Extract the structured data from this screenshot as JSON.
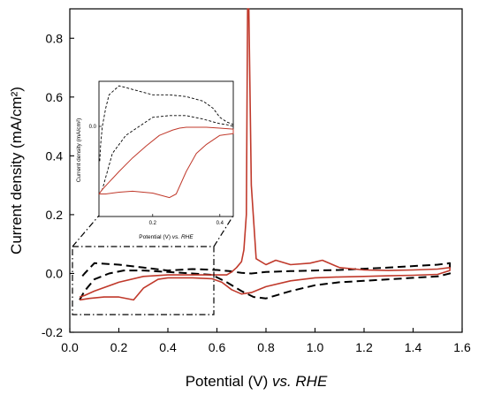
{
  "chart_data": {
    "type": "line",
    "xlabel_main": "Potential (V) ",
    "xlabel_em": "vs. RHE",
    "ylabel": "Current density (mA/cm²)",
    "xlim": [
      0.0,
      1.6
    ],
    "ylim": [
      -0.2,
      0.9
    ],
    "xticks": [
      "0.0",
      "0.2",
      "0.4",
      "0.6",
      "0.8",
      "1.0",
      "1.2",
      "1.4",
      "1.6"
    ],
    "yticks": [
      "-0.2",
      "0.0",
      "0.2",
      "0.4",
      "0.6",
      "0.8"
    ],
    "grid": false,
    "series": [
      {
        "style": "dashed",
        "color": "#000000",
        "x": [
          0.04,
          0.06,
          0.1,
          0.16,
          0.22,
          0.3,
          0.4,
          0.5,
          0.58,
          0.64,
          0.7,
          0.75,
          0.8,
          0.9,
          1.0,
          1.1,
          1.2,
          1.3,
          1.4,
          1.5,
          1.55,
          1.55,
          1.5,
          1.4,
          1.3,
          1.2,
          1.1,
          1.0,
          0.9,
          0.8,
          0.74,
          0.7,
          0.65,
          0.6,
          0.5,
          0.4,
          0.3,
          0.2,
          0.1,
          0.06,
          0.04
        ],
        "y": [
          -0.09,
          -0.06,
          -0.02,
          0.0,
          0.01,
          0.01,
          0.005,
          0.0,
          -0.005,
          -0.03,
          -0.06,
          -0.08,
          -0.085,
          -0.06,
          -0.04,
          -0.03,
          -0.025,
          -0.02,
          -0.015,
          -0.01,
          0.0,
          0.035,
          0.03,
          0.025,
          0.02,
          0.016,
          0.012,
          0.01,
          0.008,
          0.005,
          0.0,
          0.002,
          0.008,
          0.012,
          0.015,
          0.01,
          0.02,
          0.03,
          0.035,
          0.0,
          -0.02
        ]
      },
      {
        "style": "solid",
        "color": "#c0392b",
        "x": [
          0.04,
          0.08,
          0.14,
          0.2,
          0.26,
          0.3,
          0.36,
          0.4,
          0.5,
          0.58,
          0.62,
          0.66,
          0.7,
          0.74,
          0.8,
          0.9,
          1.0,
          1.1,
          1.2,
          1.3,
          1.4,
          1.5,
          1.55,
          1.55,
          1.5,
          1.4,
          1.3,
          1.2,
          1.1,
          1.03,
          0.98,
          0.9,
          0.84,
          0.8,
          0.76,
          0.74,
          0.73,
          0.725,
          0.72,
          0.71,
          0.7,
          0.68,
          0.66,
          0.64,
          0.6,
          0.5,
          0.4,
          0.3,
          0.2,
          0.1,
          0.06,
          0.04
        ],
        "y": [
          -0.09,
          -0.085,
          -0.08,
          -0.08,
          -0.09,
          -0.05,
          -0.02,
          -0.015,
          -0.015,
          -0.018,
          -0.03,
          -0.055,
          -0.07,
          -0.065,
          -0.045,
          -0.025,
          -0.015,
          -0.012,
          -0.01,
          -0.008,
          -0.006,
          -0.003,
          0.01,
          0.02,
          0.015,
          0.012,
          0.01,
          0.012,
          0.02,
          0.045,
          0.035,
          0.03,
          0.045,
          0.03,
          0.05,
          0.3,
          0.9,
          0.9,
          0.2,
          0.08,
          0.04,
          0.02,
          0.005,
          -0.005,
          -0.005,
          -0.005,
          -0.005,
          -0.01,
          -0.03,
          -0.06,
          -0.075,
          -0.08
        ]
      }
    ],
    "inset": {
      "xlabel_main": "Potential (V) ",
      "xlabel_em": "vs. RHE",
      "ylabel": "Current density (mA/cm²)",
      "xlim": [
        0.04,
        0.44
      ],
      "ylim": [
        -0.1,
        0.05
      ],
      "xticks": [
        "0.2",
        "0.4"
      ],
      "yticks": [
        "0.0"
      ],
      "series": [
        {
          "style": "dashed",
          "color": "#000000",
          "x": [
            0.04,
            0.05,
            0.08,
            0.12,
            0.16,
            0.2,
            0.25,
            0.3,
            0.35,
            0.38,
            0.4,
            0.42,
            0.44,
            0.44,
            0.42,
            0.4,
            0.38,
            0.35,
            0.3,
            0.25,
            0.2,
            0.15,
            0.1,
            0.07,
            0.06,
            0.055,
            0.05,
            0.045,
            0.042
          ],
          "y": [
            -0.075,
            -0.07,
            -0.03,
            -0.01,
            0.0,
            0.01,
            0.012,
            0.012,
            0.008,
            0.005,
            0.003,
            0.002,
            0.0,
            0.002,
            0.005,
            0.01,
            0.02,
            0.028,
            0.033,
            0.035,
            0.035,
            0.04,
            0.045,
            0.035,
            0.02,
            0.01,
            0.0,
            -0.02,
            -0.04
          ]
        },
        {
          "style": "solid",
          "color": "#c0392b",
          "x": [
            0.04,
            0.06,
            0.1,
            0.14,
            0.2,
            0.25,
            0.27,
            0.3,
            0.33,
            0.36,
            0.4,
            0.44,
            0.44,
            0.4,
            0.36,
            0.32,
            0.3,
            0.28,
            0.26,
            0.22,
            0.18,
            0.14,
            0.1,
            0.07,
            0.05,
            0.04
          ],
          "y": [
            -0.075,
            -0.075,
            -0.073,
            -0.072,
            -0.074,
            -0.079,
            -0.075,
            -0.05,
            -0.03,
            -0.02,
            -0.01,
            -0.008,
            -0.003,
            -0.002,
            -0.001,
            -0.001,
            -0.001,
            -0.002,
            -0.004,
            -0.01,
            -0.022,
            -0.035,
            -0.05,
            -0.062,
            -0.07,
            -0.075
          ]
        }
      ]
    }
  }
}
